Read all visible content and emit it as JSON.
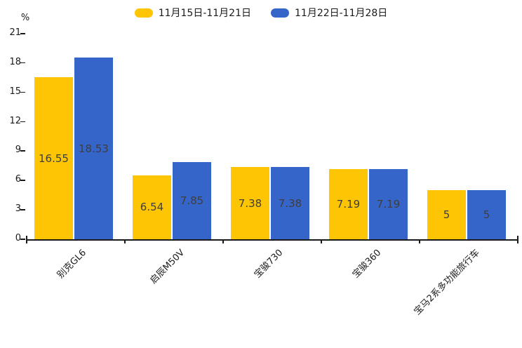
{
  "unit_label": "%",
  "chart_data": {
    "type": "bar",
    "title": "",
    "categories": [
      "别克GL6",
      "启辰M50V",
      "宝骏730",
      "宝骏360",
      "宝马2系多功能旅行车"
    ],
    "series": [
      {
        "name": "11月15日-11月21日",
        "color": "#FDC504",
        "values": [
          16.55,
          6.54,
          7.38,
          7.19,
          5
        ]
      },
      {
        "name": "11月22日-11月28日",
        "color": "#3565C9",
        "values": [
          18.53,
          7.85,
          7.38,
          7.19,
          5
        ]
      }
    ],
    "xlabel": "",
    "ylabel": "%",
    "ylim": [
      0,
      21
    ],
    "yticks": [
      0,
      3,
      6,
      9,
      12,
      15,
      18,
      21
    ],
    "grid": false,
    "legend_position": "top-center",
    "value_labels": "inside-center",
    "xtick_rotation": -45,
    "axis_color": "#1a1a1a",
    "label_text_color": "#3e3e3e"
  }
}
